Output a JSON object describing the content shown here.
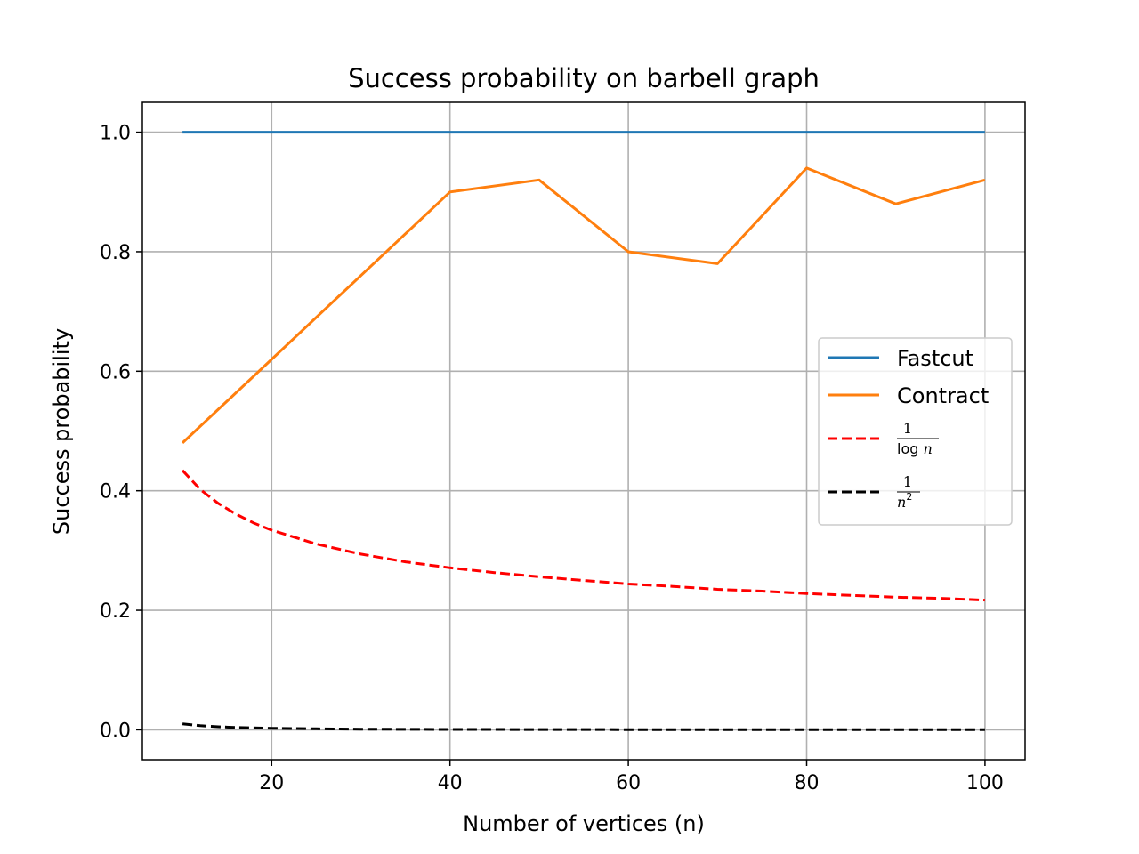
{
  "chart_data": {
    "type": "line",
    "title": "Success probability on barbell graph",
    "xlabel": "Number of vertices (n)",
    "ylabel": "Success probability",
    "xlim": [
      5.5,
      104.5
    ],
    "ylim": [
      -0.05,
      1.05
    ],
    "xticks": [
      20,
      40,
      60,
      80,
      100
    ],
    "xtick_labels": [
      "20",
      "40",
      "60",
      "80",
      "100"
    ],
    "yticks": [
      0.0,
      0.2,
      0.4,
      0.6,
      0.8,
      1.0
    ],
    "ytick_labels": [
      "0.0",
      "0.2",
      "0.4",
      "0.6",
      "0.8",
      "1.0"
    ],
    "grid": true,
    "legend_position": "center-right",
    "series": [
      {
        "name": "Fastcut",
        "color": "#1f77b4",
        "dash": "solid",
        "x": [
          10,
          20,
          30,
          40,
          50,
          60,
          70,
          80,
          90,
          100
        ],
        "y": [
          1.0,
          1.0,
          1.0,
          1.0,
          1.0,
          1.0,
          1.0,
          1.0,
          1.0,
          1.0
        ]
      },
      {
        "name": "Contract",
        "color": "#ff7f0e",
        "dash": "solid",
        "x": [
          10,
          20,
          30,
          40,
          50,
          60,
          70,
          80,
          90,
          100
        ],
        "y": [
          0.48,
          0.62,
          0.76,
          0.9,
          0.92,
          0.8,
          0.78,
          0.94,
          0.88,
          0.92
        ]
      },
      {
        "name": "1/log n",
        "legend_num": "1",
        "legend_den": "log n",
        "color": "#ff0000",
        "dash": "dashed",
        "x": [
          10,
          12,
          14,
          16,
          18,
          20,
          25,
          30,
          35,
          40,
          45,
          50,
          55,
          60,
          65,
          70,
          75,
          80,
          85,
          90,
          95,
          100
        ],
        "y": [
          0.434,
          0.402,
          0.379,
          0.361,
          0.346,
          0.334,
          0.311,
          0.294,
          0.281,
          0.271,
          0.263,
          0.256,
          0.25,
          0.244,
          0.24,
          0.235,
          0.232,
          0.228,
          0.225,
          0.222,
          0.22,
          0.217
        ]
      },
      {
        "name": "1/n^2",
        "legend_num": "1",
        "legend_den": "n",
        "legend_exp": "2",
        "color": "#000000",
        "dash": "dashed",
        "x": [
          10,
          12,
          14,
          16,
          18,
          20,
          25,
          30,
          40,
          50,
          60,
          70,
          80,
          90,
          100
        ],
        "y": [
          0.01,
          0.0069,
          0.0051,
          0.0039,
          0.0031,
          0.0025,
          0.0016,
          0.0011,
          0.0006,
          0.0004,
          0.0003,
          0.0002,
          0.0002,
          0.0001,
          0.0001
        ]
      }
    ]
  }
}
